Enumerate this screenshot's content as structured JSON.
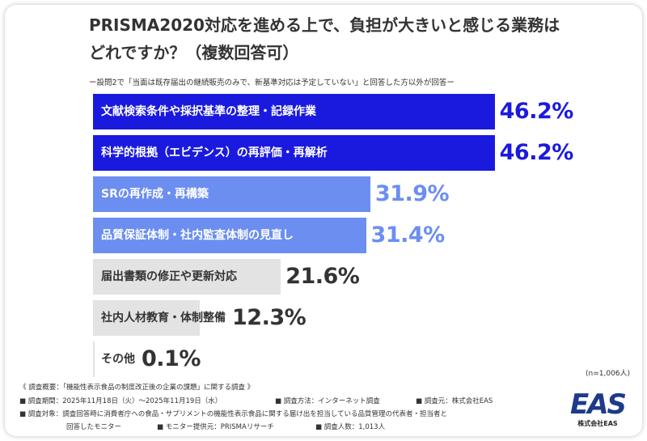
{
  "title_line1": "PRISMA2020対応を進める上で、負担が大きいと感じる業務は",
  "title_line2": "どれですか？（複数回答可）",
  "subtitle": "ー設問2で「当面は既存届出の継続販売のみで、新基準対応は予定していない」と回答した方以外が回答ー",
  "n_note": "(n=1,006人)",
  "footer": {
    "line1": "《 調査概要：「機能性表示食品の制度改正後の企業の課題」に関する調査 》",
    "period": "■ 調査期間：2025年11月18日（火）～2025年11月19日（水）",
    "method": "■ 調査方法：インターネット調査",
    "source": "■ 調査元：株式会社EAS",
    "target": "■ 調査対象：調査回答時に消費者庁への食品・サプリメントの機能性表示食品に関する届け出を担当している品質管理の代表者・担当者と",
    "target2": "回答したモニター",
    "provider": "■ モニター提供元：PRISMAリサーチ",
    "count": "■ 調査人数：1,013人"
  },
  "logo": {
    "mark": "EAS",
    "company": "株式会社EAS"
  },
  "colors": {
    "dark_blue": "#1a1adf",
    "mid_blue": "#6b8ef0",
    "gray": "#e3e3e3",
    "dark_text": "#333333"
  },
  "chart_data": {
    "type": "bar",
    "orientation": "horizontal",
    "categories": [
      "文献検索条件や採択基準の整理・記録作業",
      "科学的根拠（エビデンス）の再評価・再解析",
      "SRの再作成・再構築",
      "品質保証体制・社内監査体制の見直し",
      "届出書類の修正や更新対応",
      "社内人材教育・体制整備",
      "その他"
    ],
    "values": [
      46.2,
      46.2,
      31.9,
      31.4,
      21.6,
      12.3,
      0.1
    ],
    "value_labels": [
      "46.2%",
      "46.2%",
      "31.9%",
      "31.4%",
      "21.6%",
      "12.3%",
      "0.1%"
    ],
    "tiers": [
      "dark",
      "dark",
      "mid",
      "mid",
      "gray",
      "gray",
      "gray"
    ],
    "xlim": [
      0,
      100
    ],
    "unit": "%"
  }
}
